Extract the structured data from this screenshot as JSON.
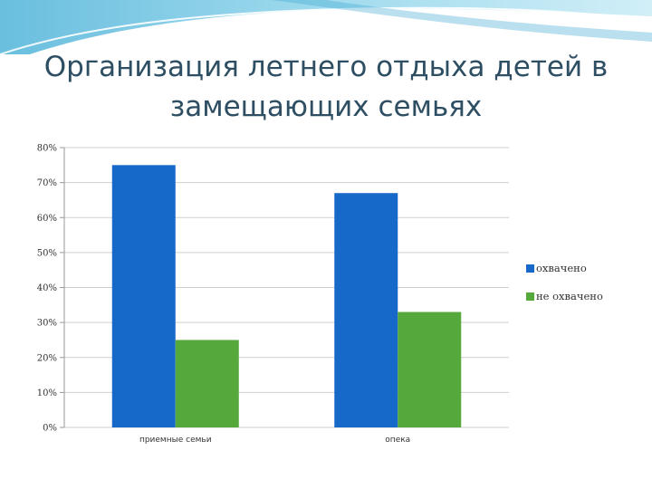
{
  "slide": {
    "title": "Организация летнего отдыха детей в замещающих семьях"
  },
  "colors": {
    "title": "#2e4e63",
    "wave": "#6fc3df",
    "series": [
      "#1669c9",
      "#55a93a"
    ]
  },
  "chart_data": {
    "type": "bar",
    "categories": [
      "приемные семьи",
      "опека"
    ],
    "series": [
      {
        "name": "охвачено",
        "values": [
          75,
          67
        ]
      },
      {
        "name": "не охвачено",
        "values": [
          25,
          33
        ]
      }
    ],
    "ylim": [
      0,
      80
    ],
    "yticks": [
      0,
      10,
      20,
      30,
      40,
      50,
      60,
      70,
      80
    ],
    "ytick_labels": [
      "0%",
      "10%",
      "20%",
      "30%",
      "40%",
      "50%",
      "60%",
      "70%",
      "80%"
    ],
    "grid": true,
    "legend": "right"
  }
}
